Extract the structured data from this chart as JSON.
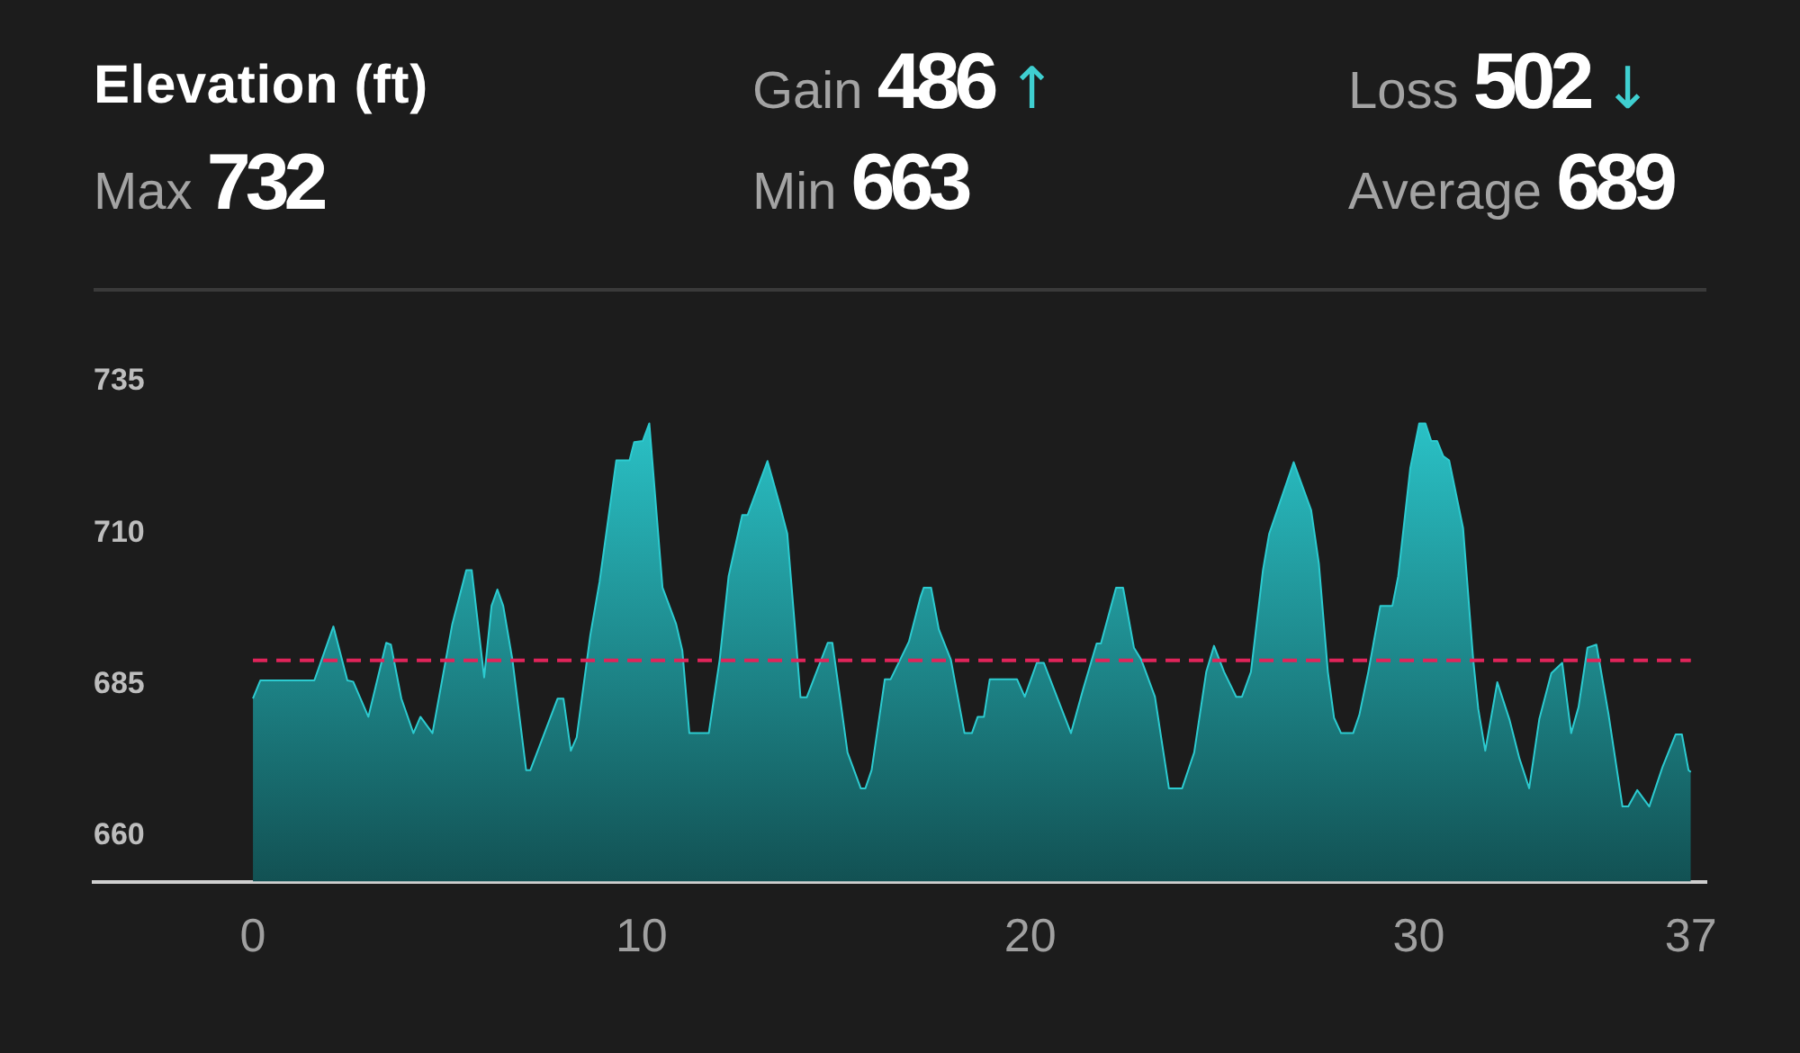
{
  "chart_data": {
    "type": "area",
    "title": "Elevation (ft)",
    "annotations": [
      "Gain 486 ↑",
      "Loss 502 ↓",
      "Max 732",
      "Min 663",
      "Average 689"
    ],
    "x": [
      0,
      0.19,
      1.58,
      2.07,
      2.43,
      2.58,
      2.97,
      3.43,
      3.55,
      3.82,
      4.13,
      4.31,
      4.62,
      5.13,
      5.49,
      5.63,
      5.95,
      6.14,
      6.29,
      6.44,
      6.68,
      7.03,
      7.14,
      7.84,
      7.99,
      8.18,
      8.33,
      8.68,
      8.92,
      9.35,
      9.69,
      9.81,
      10.03,
      10.2,
      10.54,
      10.89,
      11.05,
      11.23,
      11.73,
      12.01,
      12.24,
      12.59,
      12.73,
      13.24,
      13.55,
      13.75,
      13.94,
      14.09,
      14.25,
      14.79,
      14.91,
      15.1,
      15.3,
      15.64,
      15.76,
      15.92,
      16.26,
      16.41,
      16.88,
      17.18,
      17.26,
      17.45,
      17.65,
      17.96,
      18.31,
      18.5,
      18.65,
      18.81,
      18.96,
      19.66,
      19.86,
      20.17,
      20.35,
      21.05,
      21.36,
      21.71,
      21.82,
      22.21,
      22.39,
      22.67,
      22.86,
      23.21,
      23.57,
      23.91,
      24.22,
      24.53,
      24.73,
      24.99,
      25.3,
      25.45,
      25.68,
      25.99,
      26.15,
      26.78,
      27.23,
      27.43,
      27.66,
      27.82,
      28,
      28.31,
      28.47,
      28.7,
      29.01,
      29.32,
      29.47,
      29.78,
      30.01,
      30.17,
      30.32,
      30.47,
      30.63,
      30.78,
      31.14,
      31.4,
      31.53,
      31.71,
      32.02,
      32.33,
      32.59,
      32.84,
      33.1,
      33.41,
      33.69,
      33.92,
      34.11,
      34.34,
      34.57,
      34.88,
      35.24,
      35.39,
      35.62,
      35.93,
      36.27,
      36.61,
      36.77,
      36.94,
      37
    ],
    "values": [
      682.7,
      685.7,
      685.7,
      694.6,
      685.7,
      685.5,
      679.7,
      691.9,
      691.6,
      682.7,
      677,
      679.7,
      677,
      695,
      703.9,
      703.9,
      686.2,
      698,
      700.7,
      698,
      689,
      670.9,
      670.9,
      682.7,
      682.7,
      674.1,
      676.3,
      693.1,
      702,
      722,
      722,
      725,
      725.2,
      728.1,
      701,
      695,
      690.6,
      677,
      677,
      689.1,
      702.9,
      713,
      713,
      721.9,
      714.8,
      709.9,
      695,
      682.9,
      682.9,
      691.9,
      691.9,
      683.2,
      673.8,
      667.9,
      667.9,
      670.9,
      685.9,
      685.9,
      692.1,
      699.5,
      701,
      701,
      694.1,
      689.1,
      677,
      677,
      679.7,
      679.7,
      685.9,
      685.9,
      683,
      688.6,
      688.6,
      677,
      684.2,
      691.8,
      691.8,
      701,
      701,
      691.1,
      689.1,
      683,
      667.9,
      667.9,
      673.8,
      687.1,
      691.4,
      687.1,
      683,
      683,
      687.1,
      703.9,
      709.9,
      721.7,
      713.8,
      704.9,
      687.1,
      679.5,
      677,
      677,
      680,
      687.1,
      698,
      698,
      702.9,
      720.7,
      728.1,
      728.1,
      725.2,
      725.2,
      722.7,
      722,
      710.8,
      689.1,
      681,
      674.1,
      685.4,
      679.3,
      672.8,
      667.9,
      679.3,
      686.9,
      688.6,
      677,
      681.3,
      691.1,
      691.6,
      680.2,
      664.9,
      664.9,
      667.6,
      664.9,
      671.4,
      676.8,
      676.8,
      670.9,
      670.6
    ],
    "color": "#2ccbd0",
    "xlim": [
      -4.1,
      37.4
    ],
    "xticks": [
      0,
      10,
      20,
      30,
      37
    ],
    "ylim": [
      652.5,
      735
    ],
    "yticks": [
      660,
      685,
      710,
      735
    ],
    "ref_lines": [
      {
        "axis": "y",
        "value": 689,
        "color": "#e0245a",
        "line_style": "dashed"
      }
    ]
  }
}
